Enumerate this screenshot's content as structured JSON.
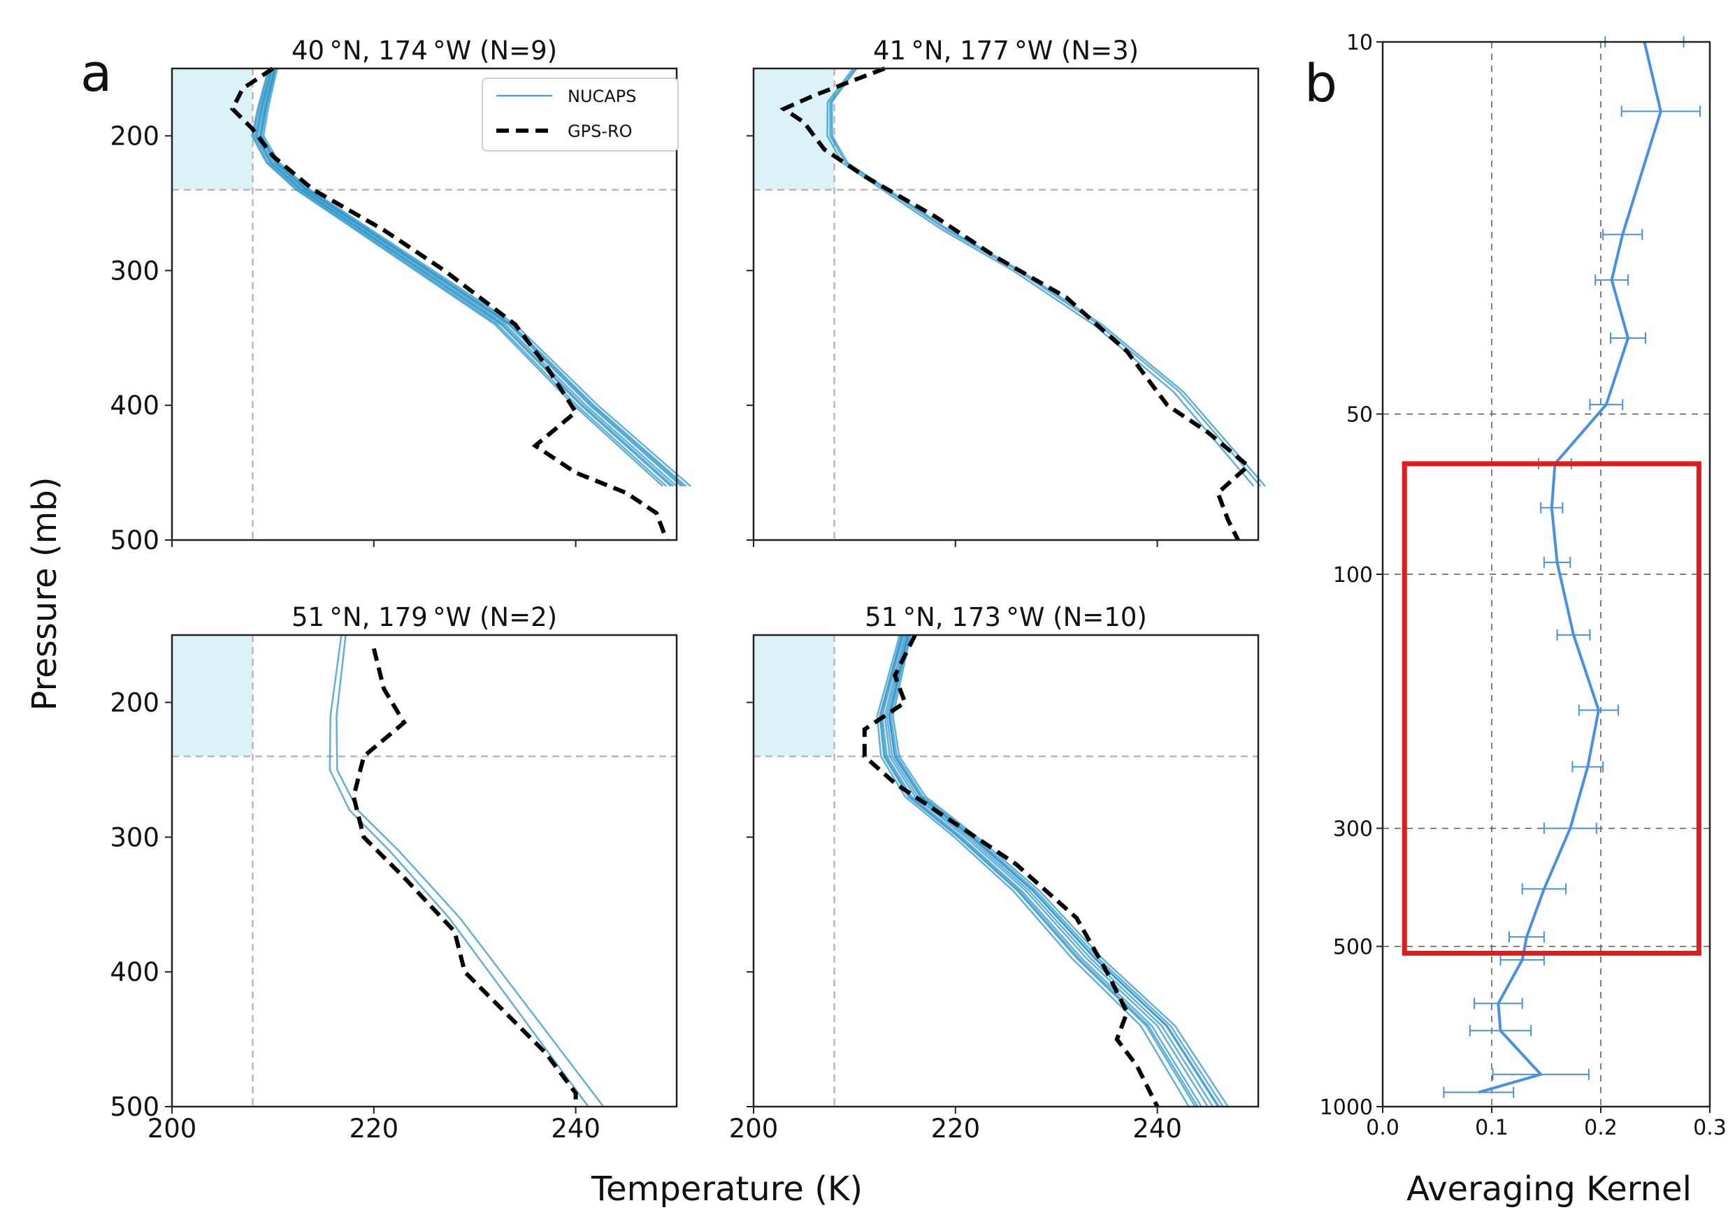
{
  "figure": {
    "panel_a_label": "a",
    "panel_b_label": "b",
    "shared_ylabel": "Pressure (mb)",
    "shared_xlabel": "Temperature (K)"
  },
  "colors": {
    "nucaps": "#1f8fc6",
    "gps": "#000000",
    "shade": "#cfeff6",
    "kernel": "#4a90e2",
    "highlight": "#e01b1b"
  },
  "legend": {
    "nucaps": "NUCAPS",
    "gps": "GPS-RO"
  },
  "chart_data": [
    {
      "type": "line",
      "title": "40 °N, 174 °W (N=9)",
      "xlabel": "Temperature (K)",
      "ylabel": "Pressure (mb)",
      "xlim": [
        200,
        250
      ],
      "ylim": [
        500,
        150
      ],
      "yscale": "linear",
      "xticks": [
        200,
        220,
        240
      ],
      "xtick_labels": [
        "200",
        "220",
        "240"
      ],
      "yticks": [
        200,
        300,
        400,
        500
      ],
      "ytick_labels": [
        "200",
        "300",
        "400",
        "500"
      ],
      "shade": {
        "tmax": 208,
        "pmin": 150,
        "pmax": 240
      },
      "guide_x": 208,
      "guide_p": 240,
      "nucaps_base": [
        [
          210,
          150
        ],
        [
          209,
          180
        ],
        [
          208.5,
          200
        ],
        [
          210,
          220
        ],
        [
          213,
          240
        ],
        [
          219,
          270
        ],
        [
          225,
          300
        ],
        [
          233,
          340
        ],
        [
          241,
          400
        ],
        [
          250,
          460
        ]
      ],
      "nucaps_offsets": [
        -0.5,
        0.0,
        0.4,
        0.8,
        -0.9,
        1.2,
        -0.3,
        0.6,
        -1.2
      ],
      "gps": [
        [
          210,
          150
        ],
        [
          207,
          165
        ],
        [
          206,
          180
        ],
        [
          208,
          195
        ],
        [
          210,
          215
        ],
        [
          214,
          240
        ],
        [
          221,
          270
        ],
        [
          227,
          300
        ],
        [
          234,
          340
        ],
        [
          237,
          370
        ],
        [
          240,
          405
        ],
        [
          236,
          430
        ],
        [
          240,
          450
        ],
        [
          245,
          465
        ],
        [
          248,
          480
        ],
        [
          249,
          500
        ]
      ]
    },
    {
      "type": "line",
      "title": "41 °N, 177 °W (N=3)",
      "xlabel": "Temperature (K)",
      "ylabel": "Pressure (mb)",
      "xlim": [
        200,
        250
      ],
      "ylim": [
        500,
        150
      ],
      "yscale": "linear",
      "xticks": [
        200,
        220,
        240
      ],
      "xtick_labels": [
        "200",
        "220",
        "240"
      ],
      "yticks": [
        200,
        300,
        400,
        500
      ],
      "ytick_labels": [
        "200",
        "300",
        "400",
        "500"
      ],
      "shade": {
        "tmax": 208,
        "pmin": 150,
        "pmax": 240
      },
      "guide_x": 208,
      "guide_p": 240,
      "nucaps_base": [
        [
          210,
          150
        ],
        [
          207.5,
          175
        ],
        [
          207.5,
          200
        ],
        [
          209,
          220
        ],
        [
          213,
          240
        ],
        [
          219,
          270
        ],
        [
          226,
          300
        ],
        [
          234,
          340
        ],
        [
          242,
          390
        ],
        [
          250,
          460
        ]
      ],
      "nucaps_offsets": [
        -0.4,
        0.2,
        0.6
      ],
      "gps": [
        [
          213,
          150
        ],
        [
          206,
          170
        ],
        [
          203,
          180
        ],
        [
          205,
          190
        ],
        [
          207,
          210
        ],
        [
          211,
          230
        ],
        [
          218,
          260
        ],
        [
          224,
          290
        ],
        [
          231,
          320
        ],
        [
          237,
          360
        ],
        [
          241,
          400
        ],
        [
          245,
          420
        ],
        [
          249,
          445
        ],
        [
          246,
          465
        ],
        [
          247,
          485
        ],
        [
          248,
          500
        ]
      ]
    },
    {
      "type": "line",
      "title": "51 °N, 179 °W (N=2)",
      "xlabel": "Temperature (K)",
      "ylabel": "Pressure (mb)",
      "xlim": [
        200,
        250
      ],
      "ylim": [
        500,
        150
      ],
      "yscale": "linear",
      "xticks": [
        200,
        220,
        240
      ],
      "xtick_labels": [
        "200",
        "220",
        "240"
      ],
      "yticks": [
        200,
        300,
        400,
        500
      ],
      "ytick_labels": [
        "200",
        "300",
        "400",
        "500"
      ],
      "shade": {
        "tmax": 208,
        "pmin": 150,
        "pmax": 240
      },
      "guide_x": 208,
      "guide_p": 240,
      "nucaps_base": [
        [
          217,
          150
        ],
        [
          216.5,
          180
        ],
        [
          216,
          210
        ],
        [
          216,
          250
        ],
        [
          218,
          280
        ],
        [
          222,
          310
        ],
        [
          228,
          360
        ],
        [
          234,
          420
        ],
        [
          242,
          500
        ]
      ],
      "nucaps_offsets": [
        -0.6,
        0.6
      ],
      "gps": [
        [
          220,
          160
        ],
        [
          221,
          190
        ],
        [
          223,
          215
        ],
        [
          219,
          240
        ],
        [
          218,
          270
        ],
        [
          219,
          300
        ],
        [
          223,
          330
        ],
        [
          228,
          370
        ],
        [
          229,
          400
        ],
        [
          233,
          430
        ],
        [
          237,
          460
        ],
        [
          240,
          490
        ],
        [
          240,
          500
        ]
      ]
    },
    {
      "type": "line",
      "title": "51 °N, 173 °W (N=10)",
      "xlabel": "Temperature (K)",
      "ylabel": "Pressure (mb)",
      "xlim": [
        200,
        250
      ],
      "ylim": [
        500,
        150
      ],
      "yscale": "linear",
      "xticks": [
        200,
        220,
        240
      ],
      "xtick_labels": [
        "200",
        "220",
        "240"
      ],
      "yticks": [
        200,
        300,
        400,
        500
      ],
      "ytick_labels": [
        "200",
        "300",
        "400",
        "500"
      ],
      "shade": {
        "tmax": 208,
        "pmin": 150,
        "pmax": 240
      },
      "guide_x": 208,
      "guide_p": 240,
      "nucaps_base": [
        [
          215,
          150
        ],
        [
          214,
          180
        ],
        [
          213,
          210
        ],
        [
          213.5,
          240
        ],
        [
          216,
          270
        ],
        [
          221,
          300
        ],
        [
          227,
          340
        ],
        [
          233,
          390
        ],
        [
          240,
          440
        ],
        [
          245,
          500
        ]
      ],
      "nucaps_offsets": [
        -1.5,
        -1.0,
        -0.5,
        0.0,
        0.4,
        0.8,
        1.2,
        1.6,
        -0.8,
        0.9
      ],
      "gps": [
        [
          216,
          150
        ],
        [
          214,
          180
        ],
        [
          215,
          200
        ],
        [
          211,
          220
        ],
        [
          211,
          240
        ],
        [
          214,
          260
        ],
        [
          220,
          290
        ],
        [
          226,
          320
        ],
        [
          232,
          360
        ],
        [
          235,
          400
        ],
        [
          237,
          430
        ],
        [
          236,
          450
        ],
        [
          238,
          470
        ],
        [
          240,
          500
        ]
      ]
    },
    {
      "type": "line",
      "title": "",
      "xlabel": "Averaging Kernel",
      "ylabel": "",
      "xlim": [
        0.0,
        0.3
      ],
      "ylim": [
        1000,
        10
      ],
      "yscale": "log",
      "xticks": [
        0.0,
        0.1,
        0.2,
        0.3
      ],
      "xtick_labels": [
        "0.0",
        "0.1",
        "0.2",
        "0.3"
      ],
      "yticks": [
        10,
        50,
        100,
        300,
        500,
        1000
      ],
      "ytick_labels": [
        "10",
        "50",
        "100",
        "300",
        "500",
        "1000"
      ],
      "vgrid": [
        0.1,
        0.2
      ],
      "hgrid": [
        50,
        100,
        300,
        500
      ],
      "highlight_box": {
        "x0": 0.02,
        "x1": 0.29,
        "p0": 62,
        "p1": 515
      },
      "series": [
        {
          "name": "Averaging Kernel",
          "points": [
            [
              0.24,
              10
            ],
            [
              0.255,
              13.5
            ],
            [
              0.22,
              23
            ],
            [
              0.21,
              28
            ],
            [
              0.225,
              36
            ],
            [
              0.205,
              48
            ],
            [
              0.158,
              62
            ],
            [
              0.155,
              75
            ],
            [
              0.16,
              95
            ],
            [
              0.175,
              130
            ],
            [
              0.198,
              180
            ],
            [
              0.188,
              230
            ],
            [
              0.172,
              300
            ],
            [
              0.148,
              390
            ],
            [
              0.132,
              480
            ],
            [
              0.128,
              530
            ],
            [
              0.106,
              640
            ],
            [
              0.108,
              720
            ],
            [
              0.145,
              870
            ],
            [
              0.088,
              940
            ]
          ],
          "errors": [
            0.036,
            0.036,
            0.018,
            0.015,
            0.016,
            0.015,
            0.015,
            0.01,
            0.012,
            0.015,
            0.018,
            0.014,
            0.024,
            0.02,
            0.016,
            0.02,
            0.022,
            0.028,
            0.044,
            0.032
          ]
        }
      ]
    }
  ]
}
